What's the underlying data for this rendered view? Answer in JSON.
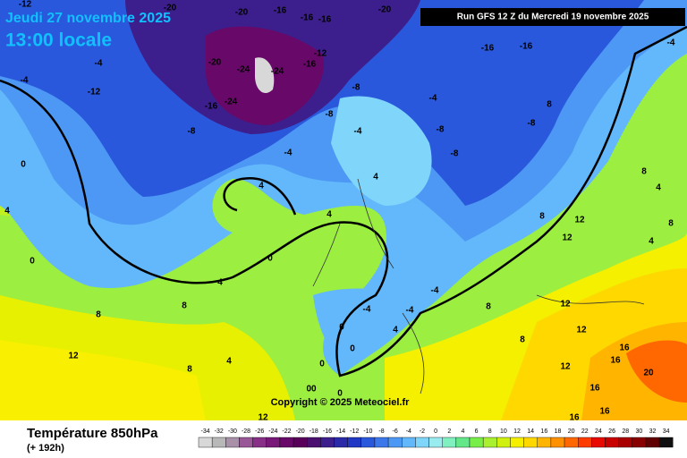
{
  "header": {
    "date": "Jeudi 27 novembre 2025",
    "time": "13:00 locale",
    "run": "Run GFS 12 Z du Mercredi 19 novembre 2025"
  },
  "map": {
    "copyright": "Copyright © 2025 Meteociel.fr",
    "contour_labels": [
      "-12",
      "-20",
      "-20",
      "-16",
      "-16",
      "-16",
      "-20",
      "-16",
      "-16",
      "-4",
      "-4",
      "-4",
      "-12",
      "-20",
      "-24",
      "-24",
      "-24",
      "-16",
      "-16",
      "-12",
      "-8",
      "-8",
      "-8",
      "-4",
      "-4",
      "-4",
      "-8",
      "-8",
      "-8",
      "8",
      "0",
      "4",
      "4",
      "0",
      "4",
      "8",
      "8",
      "0",
      "4",
      "4",
      "8",
      "12",
      "8",
      "12",
      "4",
      "-4",
      "-4",
      "-4",
      "0",
      "4",
      "8",
      "12",
      "12",
      "8",
      "0",
      "0",
      "4",
      "8",
      "12",
      "16",
      "16",
      "20",
      "16",
      "16",
      "16",
      "12",
      "00",
      "0",
      "12",
      "4",
      "8"
    ]
  },
  "footer": {
    "title": "Température 850hPa",
    "lead": "(+ 192h)"
  },
  "legend": {
    "levels": [
      -34,
      -32,
      -30,
      -28,
      -26,
      -24,
      -22,
      -20,
      -18,
      -16,
      -14,
      -12,
      -10,
      -8,
      -6,
      -4,
      -2,
      0,
      2,
      4,
      6,
      8,
      10,
      12,
      14,
      16,
      18,
      20,
      22,
      24,
      26,
      28,
      30,
      32,
      34
    ],
    "colors": [
      "#d8d8d8",
      "#b8b8b8",
      "#a890a8",
      "#985898",
      "#883088",
      "#781878",
      "#680868",
      "#58005a",
      "#4a1070",
      "#3c1f8c",
      "#2a2aa8",
      "#2038c4",
      "#2a58dc",
      "#3c78ea",
      "#4c98f4",
      "#62b8fa",
      "#80d6fa",
      "#98ecf0",
      "#80f0c0",
      "#62e888",
      "#78ee48",
      "#a8f030",
      "#d0f010",
      "#f4f000",
      "#ffd800",
      "#ffb400",
      "#ff9000",
      "#ff6800",
      "#ff3c00",
      "#e80a00",
      "#c80000",
      "#a80000",
      "#880000",
      "#600000",
      "#101010"
    ]
  }
}
